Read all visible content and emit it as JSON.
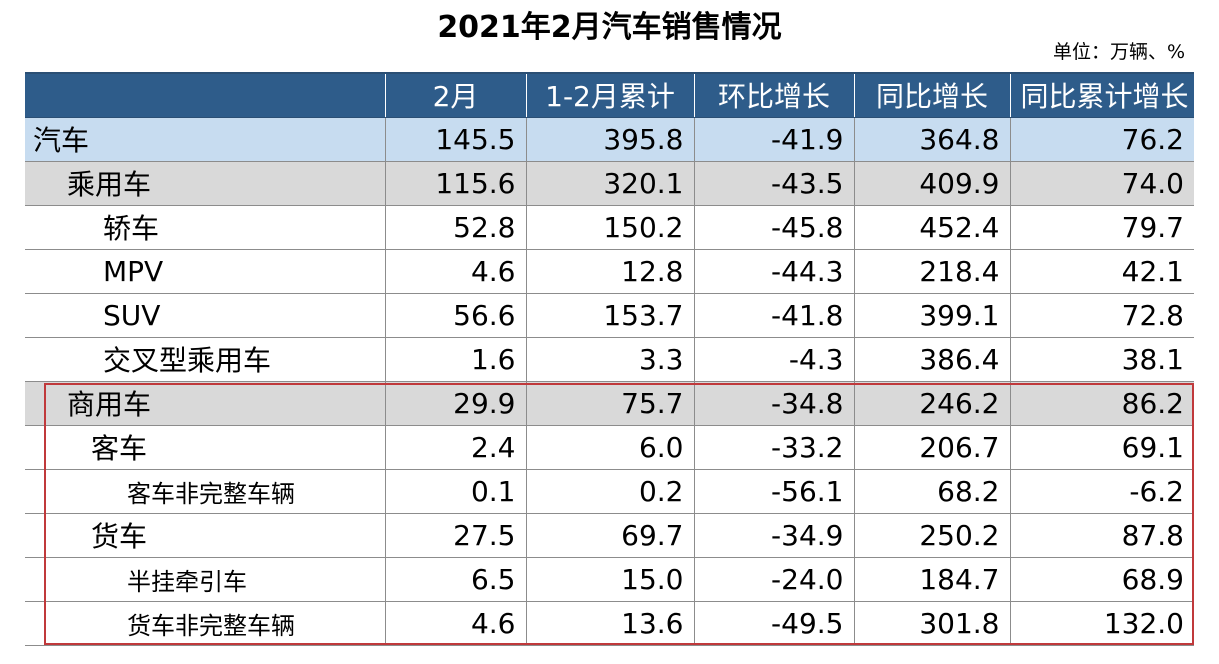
{
  "title": "2021年2月汽车销售情况",
  "unit": "单位：万辆、%",
  "table": {
    "headers": [
      "",
      "2月",
      "1-2月累计",
      "环比增长",
      "同比增长",
      "同比累计增长"
    ],
    "rows": [
      {
        "label": "汽车",
        "values": [
          "145.5",
          "395.8",
          "-41.9",
          "364.8",
          "76.2"
        ]
      },
      {
        "label": "乘用车",
        "values": [
          "115.6",
          "320.1",
          "-43.5",
          "409.9",
          "74.0"
        ]
      },
      {
        "label": "轿车",
        "values": [
          "52.8",
          "150.2",
          "-45.8",
          "452.4",
          "79.7"
        ]
      },
      {
        "label": "MPV",
        "values": [
          "4.6",
          "12.8",
          "-44.3",
          "218.4",
          "42.1"
        ]
      },
      {
        "label": "SUV",
        "values": [
          "56.6",
          "153.7",
          "-41.8",
          "399.1",
          "72.8"
        ]
      },
      {
        "label": "交叉型乘用车",
        "values": [
          "1.6",
          "3.3",
          "-4.3",
          "386.4",
          "38.1"
        ]
      },
      {
        "label": "商用车",
        "values": [
          "29.9",
          "75.7",
          "-34.8",
          "246.2",
          "86.2"
        ]
      },
      {
        "label": "客车",
        "values": [
          "2.4",
          "6.0",
          "-33.2",
          "206.7",
          "69.1"
        ]
      },
      {
        "label": "客车非完整车辆",
        "values": [
          "0.1",
          "0.2",
          "-56.1",
          "68.2",
          "-6.2"
        ]
      },
      {
        "label": "货车",
        "values": [
          "27.5",
          "69.7",
          "-34.9",
          "250.2",
          "87.8"
        ]
      },
      {
        "label": "半挂牵引车",
        "values": [
          "6.5",
          "15.0",
          "-24.0",
          "184.7",
          "68.9"
        ]
      },
      {
        "label": "货车非完整车辆",
        "values": [
          "4.6",
          "13.6",
          "-49.5",
          "301.8",
          "132.0"
        ]
      }
    ]
  },
  "colors": {
    "header_bg": "#2e5c8a",
    "total_row_bg": "#c7dcf0",
    "category_row_bg": "#d9d9d9",
    "highlight_border": "#c0393b"
  }
}
